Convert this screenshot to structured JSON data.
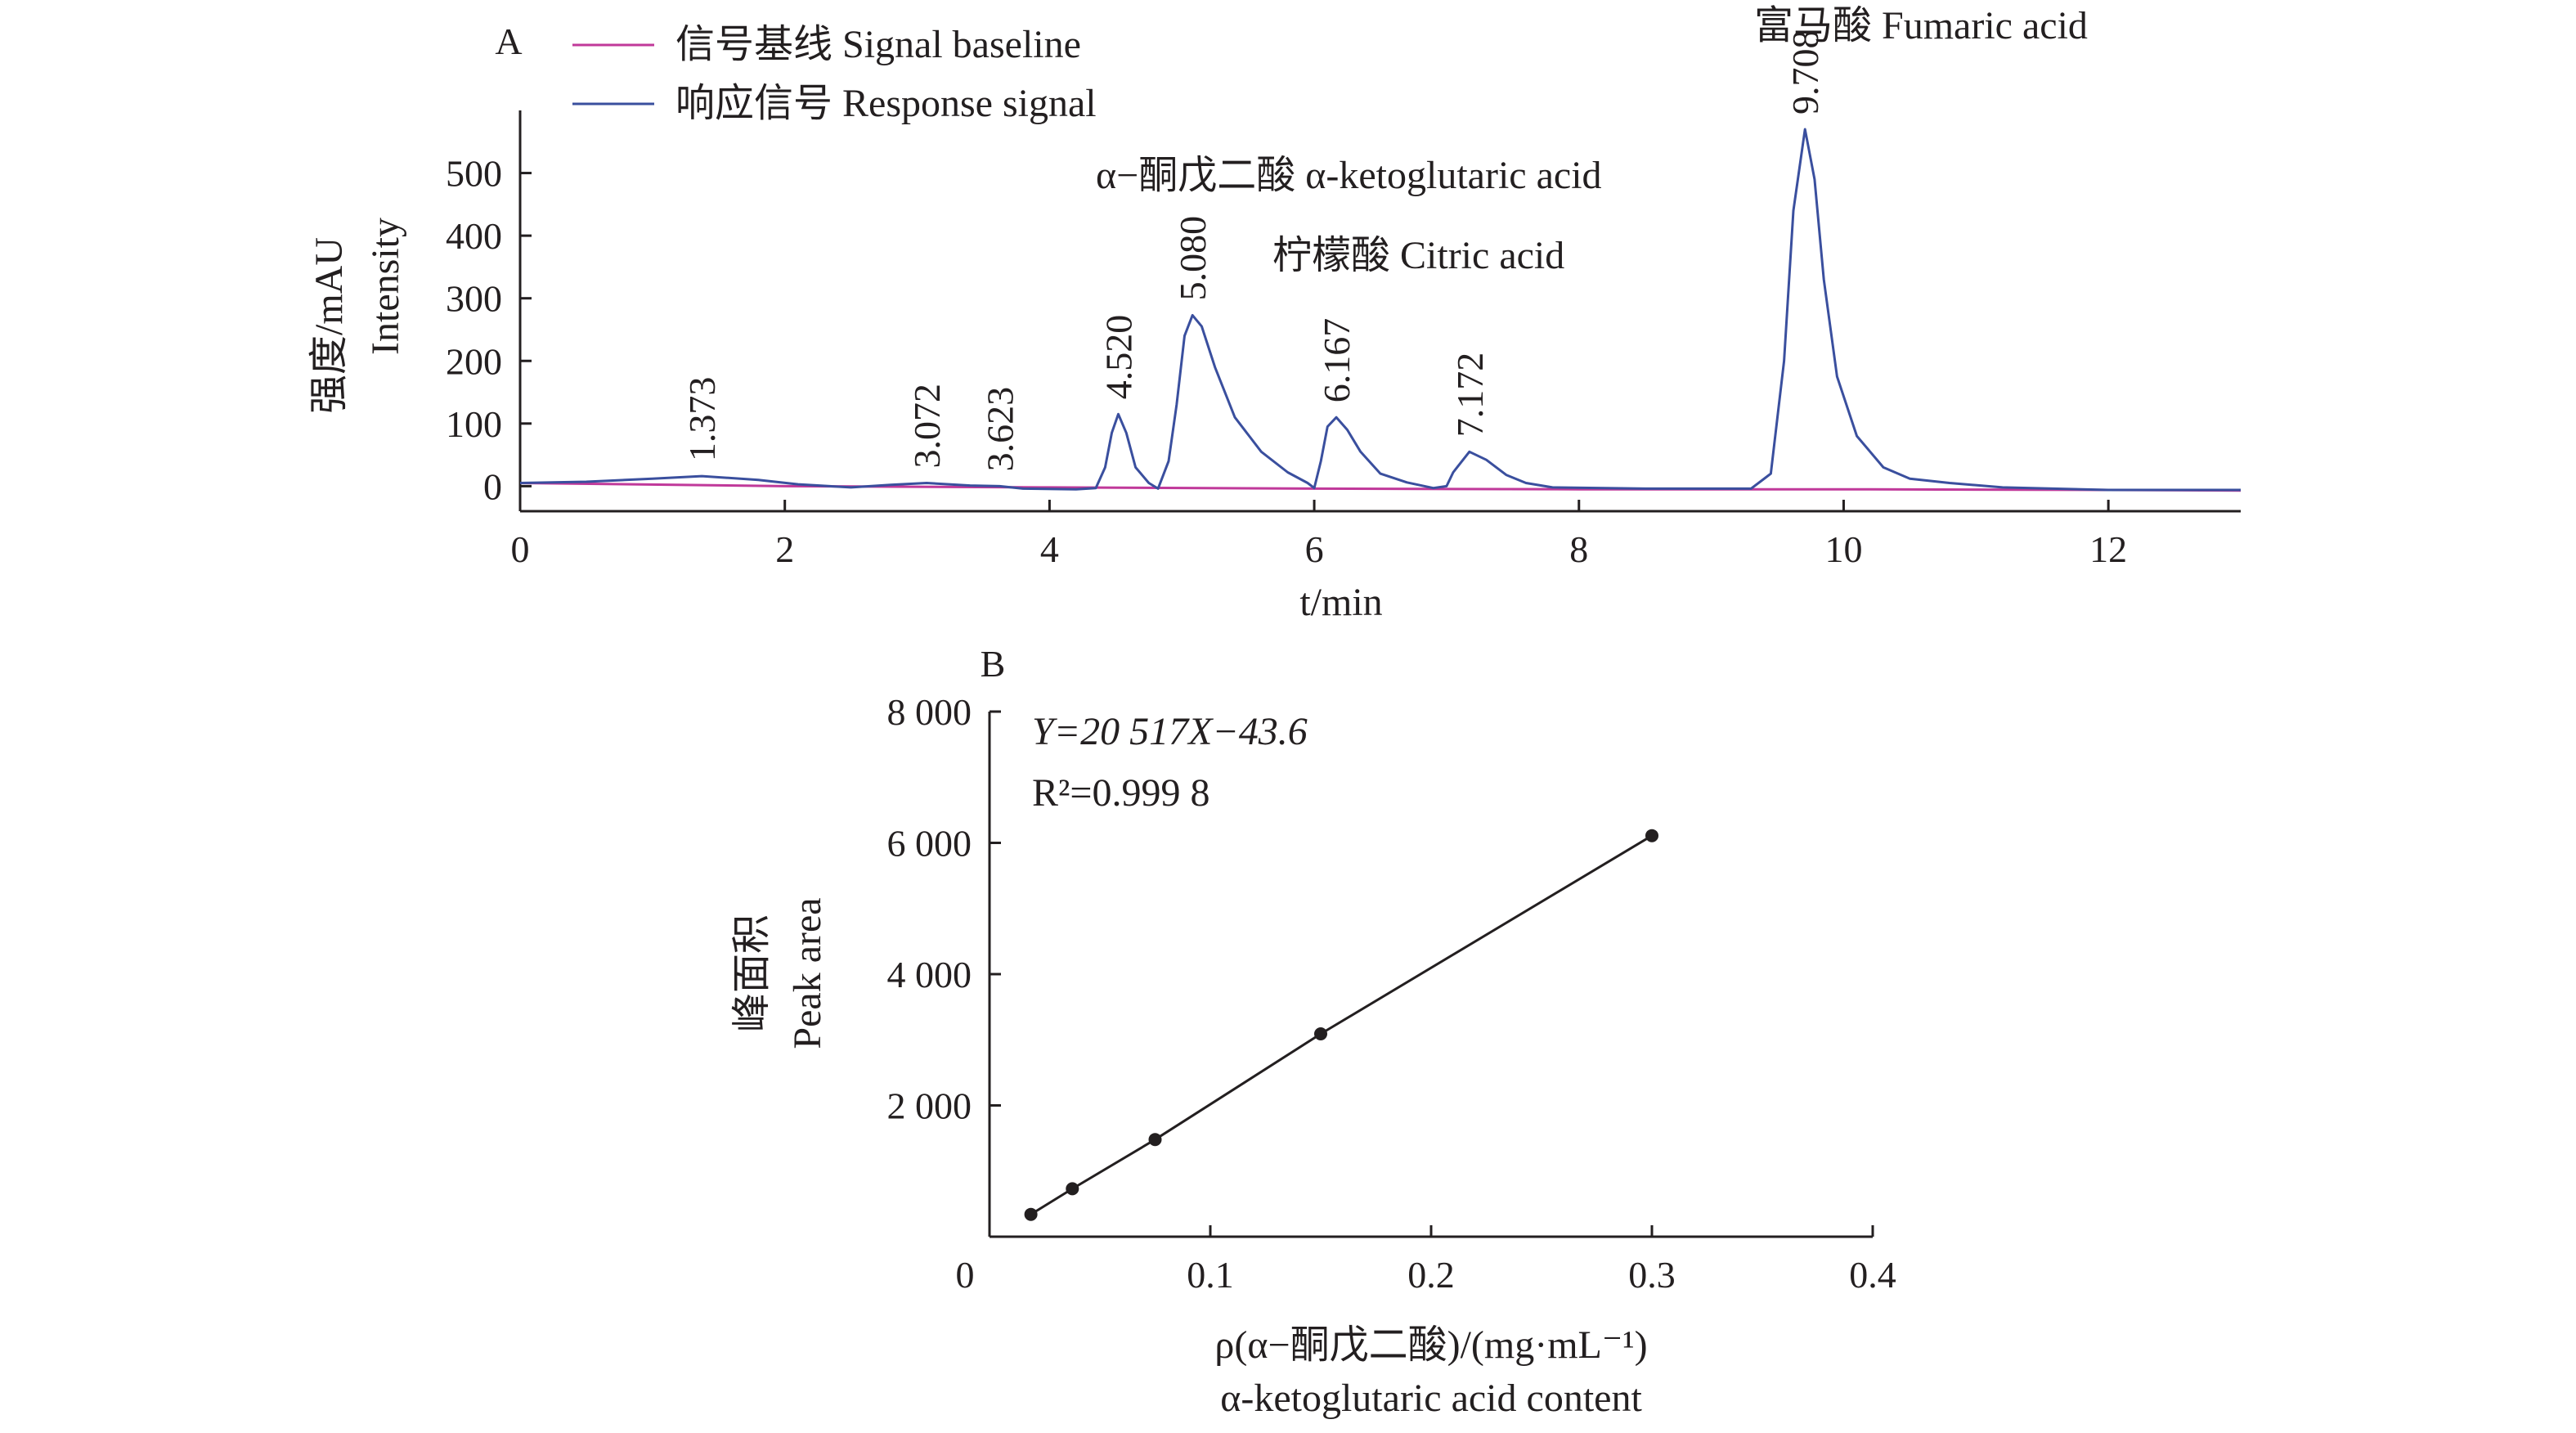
{
  "chart_data": [
    {
      "panel_label": "A",
      "type": "line",
      "xlabel": "t/min",
      "ylabel_cn": "强度/mAU",
      "ylabel_en": "Intensity",
      "xlim": [
        0,
        13
      ],
      "ylim": [
        -40,
        600
      ],
      "x_ticks": [
        0,
        2,
        4,
        6,
        8,
        10,
        12
      ],
      "y_ticks": [
        0,
        100,
        200,
        300,
        400,
        500
      ],
      "legend_position": "top-left",
      "colors": {
        "baseline": "#c0399a",
        "response": "#3a4f9e"
      },
      "series": [
        {
          "name": "信号基线 Signal baseline",
          "points": [
            [
              0,
              5
            ],
            [
              2,
              0
            ],
            [
              4,
              -2
            ],
            [
              6,
              -4
            ],
            [
              8,
              -5
            ],
            [
              10,
              -5
            ],
            [
              12,
              -6
            ],
            [
              13,
              -7
            ]
          ]
        },
        {
          "name": "响应信号 Response signal",
          "points": [
            [
              0,
              5
            ],
            [
              0.5,
              7
            ],
            [
              1.0,
              12
            ],
            [
              1.373,
              16
            ],
            [
              1.8,
              10
            ],
            [
              2.1,
              3
            ],
            [
              2.5,
              -2
            ],
            [
              2.8,
              2
            ],
            [
              3.072,
              5
            ],
            [
              3.4,
              1
            ],
            [
              3.623,
              0
            ],
            [
              3.8,
              -4
            ],
            [
              4.2,
              -5
            ],
            [
              4.35,
              -3
            ],
            [
              4.42,
              30
            ],
            [
              4.47,
              85
            ],
            [
              4.52,
              115
            ],
            [
              4.58,
              85
            ],
            [
              4.65,
              30
            ],
            [
              4.75,
              5
            ],
            [
              4.82,
              -4
            ],
            [
              4.9,
              40
            ],
            [
              4.96,
              130
            ],
            [
              5.02,
              240
            ],
            [
              5.08,
              273
            ],
            [
              5.15,
              255
            ],
            [
              5.25,
              190
            ],
            [
              5.4,
              110
            ],
            [
              5.6,
              55
            ],
            [
              5.8,
              22
            ],
            [
              5.95,
              5
            ],
            [
              6.0,
              -3
            ],
            [
              6.05,
              40
            ],
            [
              6.1,
              95
            ],
            [
              6.167,
              110
            ],
            [
              6.25,
              90
            ],
            [
              6.35,
              55
            ],
            [
              6.5,
              20
            ],
            [
              6.7,
              6
            ],
            [
              6.9,
              -3
            ],
            [
              7.0,
              0
            ],
            [
              7.05,
              22
            ],
            [
              7.172,
              55
            ],
            [
              7.3,
              42
            ],
            [
              7.45,
              18
            ],
            [
              7.6,
              5
            ],
            [
              7.8,
              -2
            ],
            [
              8.5,
              -4
            ],
            [
              9.3,
              -4
            ],
            [
              9.45,
              20
            ],
            [
              9.55,
              200
            ],
            [
              9.62,
              440
            ],
            [
              9.708,
              570
            ],
            [
              9.78,
              490
            ],
            [
              9.85,
              330
            ],
            [
              9.95,
              175
            ],
            [
              10.1,
              80
            ],
            [
              10.3,
              30
            ],
            [
              10.5,
              12
            ],
            [
              10.8,
              5
            ],
            [
              11.2,
              -2
            ],
            [
              12.0,
              -6
            ],
            [
              13,
              -6
            ]
          ]
        }
      ],
      "peak_labels": [
        {
          "x": 1.373,
          "y": 16,
          "text": "1.373"
        },
        {
          "x": 3.072,
          "y": 5,
          "text": "3.072"
        },
        {
          "x": 3.623,
          "y": 0,
          "text": "3.623"
        },
        {
          "x": 4.52,
          "y": 115,
          "text": "4.520"
        },
        {
          "x": 5.08,
          "y": 273,
          "text": "5.080"
        },
        {
          "x": 6.167,
          "y": 110,
          "text": "6.167"
        },
        {
          "x": 7.172,
          "y": 55,
          "text": "7.172"
        },
        {
          "x": 9.708,
          "y": 570,
          "text": "9.708"
        }
      ],
      "annotations": [
        {
          "text": "α−酮戊二酸  α-ketoglutaric acid"
        },
        {
          "text": "柠檬酸 Citric acid"
        },
        {
          "text": "富马酸 Fumaric acid"
        }
      ]
    },
    {
      "panel_label": "B",
      "type": "line",
      "xlabel": "ρ(α−酮戊二酸)/(mg·mL⁻¹)",
      "xlabel_en": "α-ketoglutaric acid content",
      "ylabel_cn": "峰面积",
      "ylabel_en": "Peak area",
      "xlim": [
        0,
        0.4
      ],
      "ylim": [
        0,
        8000
      ],
      "x_ticks": [
        0,
        0.1,
        0.2,
        0.3,
        0.4
      ],
      "x_tick_labels": [
        "0",
        "0.1",
        "0.2",
        "0.3",
        "0.4"
      ],
      "y_ticks": [
        2000,
        4000,
        6000,
        8000
      ],
      "y_tick_labels": [
        "2 000",
        "4 000",
        "6 000",
        "8 000"
      ],
      "equation": "Y=20 517X−43.6",
      "r_squared": "R²=0.999 8",
      "series": [
        {
          "x": [
            0.01875,
            0.0375,
            0.075,
            0.15,
            0.3
          ],
          "y": [
            340,
            730,
            1480,
            3090,
            6110
          ]
        }
      ]
    }
  ]
}
